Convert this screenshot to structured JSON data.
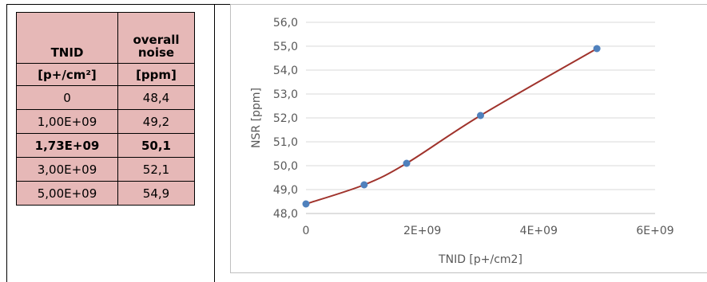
{
  "table": {
    "header": {
      "col1_top": "",
      "col1_mid": "TNID",
      "col1_bottom": "[p+/cm²]",
      "col2_top": "overall",
      "col2_mid": "noise",
      "col2_bottom": "[ppm]"
    },
    "rows": [
      {
        "tnid": "0",
        "noise": "48,4",
        "bold": false
      },
      {
        "tnid": "1,00E+09",
        "noise": "49,2",
        "bold": false
      },
      {
        "tnid": "1,73E+09",
        "noise": "50,1",
        "bold": true
      },
      {
        "tnid": "3,00E+09",
        "noise": "52,1",
        "bold": false
      },
      {
        "tnid": "5,00E+09",
        "noise": "54,9",
        "bold": false
      }
    ]
  },
  "chart_data": {
    "type": "line",
    "title": "",
    "xlabel": "TNID [p+/cm2]",
    "ylabel": "NSR [ppm]",
    "xlim": [
      0,
      6000000000
    ],
    "ylim": [
      48.0,
      56.0
    ],
    "x_ticks": [
      0,
      2000000000,
      4000000000,
      6000000000
    ],
    "x_tick_labels": [
      "0",
      "2E+09",
      "4E+09",
      "6E+09"
    ],
    "y_ticks": [
      48,
      49,
      50,
      51,
      52,
      53,
      54,
      55,
      56
    ],
    "y_tick_labels": [
      "48,0",
      "49,0",
      "50,0",
      "51,0",
      "52,0",
      "53,0",
      "54,0",
      "55,0",
      "56,0"
    ],
    "grid": "horizontal",
    "legend": "none",
    "series": [
      {
        "x": [
          0,
          1000000000,
          1730000000,
          3000000000,
          5000000000
        ],
        "y": [
          48.4,
          49.2,
          50.1,
          52.1,
          54.9
        ],
        "marker_color": "#4f81bd",
        "line_color": "#a0332c",
        "smooth": true
      }
    ]
  }
}
